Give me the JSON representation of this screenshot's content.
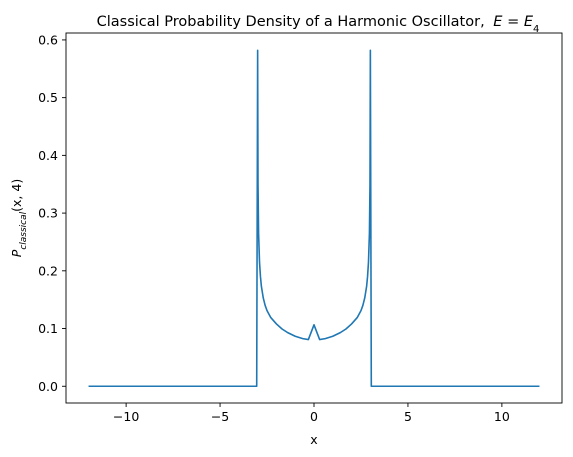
{
  "chart_data": {
    "type": "line",
    "title": "Classical Probability Density of a Harmonic Oscillator,",
    "title_math": {
      "E": "E",
      "eq": " = ",
      "base": "E",
      "sub": "4"
    },
    "xlabel": "x",
    "ylabel": {
      "base": "P",
      "sub": "classical",
      "args": "(x, 4)"
    },
    "xlim": [
      -13.2,
      13.2
    ],
    "ylim": [
      -0.029,
      0.612
    ],
    "xticks": [
      -10,
      -5,
      0,
      5,
      10
    ],
    "xtick_labels": [
      "−10",
      "−5",
      "0",
      "5",
      "10"
    ],
    "yticks": [
      0.0,
      0.1,
      0.2,
      0.3,
      0.4,
      0.5,
      0.6
    ],
    "ytick_labels": [
      "0.0",
      "0.1",
      "0.2",
      "0.3",
      "0.4",
      "0.5",
      "0.6"
    ],
    "grid": false,
    "legend": "none",
    "series": [
      {
        "color": "#1f77b4",
        "x": [
          -12.0,
          -3.05,
          -3.0,
          -2.98,
          -2.95,
          -2.9,
          -2.85,
          -2.8,
          -2.7,
          -2.6,
          -2.5,
          -2.3,
          -2.0,
          -1.7,
          -1.4,
          -1.0,
          -0.6,
          -0.3,
          0.0,
          0.3,
          0.6,
          1.0,
          1.4,
          1.7,
          2.0,
          2.3,
          2.5,
          2.6,
          2.7,
          2.8,
          2.85,
          2.9,
          2.95,
          2.98,
          3.0,
          3.05,
          12.0
        ],
        "y": [
          0.0,
          0.0,
          0.582,
          0.35,
          0.265,
          0.215,
          0.19,
          0.173,
          0.153,
          0.14,
          0.131,
          0.119,
          0.108,
          0.0992,
          0.0929,
          0.0866,
          0.0825,
          0.0809,
          0.1065,
          0.0809,
          0.0825,
          0.0866,
          0.0929,
          0.0992,
          0.108,
          0.119,
          0.131,
          0.14,
          0.153,
          0.173,
          0.19,
          0.215,
          0.265,
          0.35,
          0.582,
          0.0,
          0.0
        ]
      }
    ]
  }
}
